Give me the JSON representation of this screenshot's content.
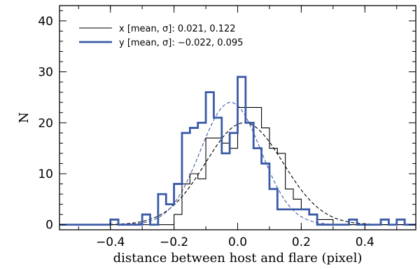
{
  "chart_data": {
    "type": "histogram",
    "xlabel": "distance between host and flare (pixel)",
    "ylabel": "N",
    "xlim": [
      -0.56,
      0.56
    ],
    "ylim": [
      -1,
      43
    ],
    "x_ticks": [
      -0.4,
      -0.2,
      0.0,
      0.2,
      0.4
    ],
    "x_tick_labels": [
      "−0.4",
      "−0.2",
      "0.0",
      "0.2",
      "0.4"
    ],
    "y_ticks": [
      0,
      10,
      20,
      30,
      40
    ],
    "y_tick_labels": [
      "0",
      "10",
      "20",
      "30",
      "40"
    ],
    "legend_position": "top-left",
    "series": [
      {
        "name": "x [mean, σ]: 0.021, 0.122",
        "style": "thin",
        "color": "#000000",
        "mean": 0.021,
        "sigma": 0.122,
        "points": [
          [
            -0.56,
            0
          ],
          [
            -0.4,
            0
          ],
          [
            -0.375,
            0
          ],
          [
            -0.35,
            0
          ],
          [
            -0.325,
            0
          ],
          [
            -0.3,
            0
          ],
          [
            -0.275,
            0
          ],
          [
            -0.25,
            0
          ],
          [
            -0.225,
            0
          ],
          [
            -0.2,
            2
          ],
          [
            -0.175,
            8
          ],
          [
            -0.15,
            10
          ],
          [
            -0.125,
            9
          ],
          [
            -0.1,
            17
          ],
          [
            -0.075,
            17
          ],
          [
            -0.05,
            16
          ],
          [
            -0.025,
            15
          ],
          [
            0.0,
            23
          ],
          [
            0.025,
            23
          ],
          [
            0.05,
            23
          ],
          [
            0.075,
            19
          ],
          [
            0.1,
            15
          ],
          [
            0.125,
            14
          ],
          [
            0.15,
            7
          ],
          [
            0.175,
            5
          ],
          [
            0.2,
            3
          ],
          [
            0.225,
            2
          ],
          [
            0.25,
            1
          ],
          [
            0.275,
            1
          ],
          [
            0.3,
            0
          ],
          [
            0.56,
            0
          ]
        ]
      },
      {
        "name": "y [mean, σ]: −0.022, 0.095",
        "style": "thick",
        "color": "#3a5aa8",
        "mean": -0.022,
        "sigma": 0.095,
        "points": [
          [
            -0.56,
            0
          ],
          [
            -0.4,
            1
          ],
          [
            -0.375,
            0
          ],
          [
            -0.35,
            0
          ],
          [
            -0.325,
            0
          ],
          [
            -0.3,
            2
          ],
          [
            -0.275,
            0
          ],
          [
            -0.25,
            6
          ],
          [
            -0.225,
            4
          ],
          [
            -0.2,
            8
          ],
          [
            -0.175,
            18
          ],
          [
            -0.15,
            19
          ],
          [
            -0.125,
            20
          ],
          [
            -0.1,
            26
          ],
          [
            -0.075,
            21
          ],
          [
            -0.05,
            14
          ],
          [
            -0.025,
            18
          ],
          [
            0.0,
            29
          ],
          [
            0.025,
            20
          ],
          [
            0.05,
            15
          ],
          [
            0.075,
            12
          ],
          [
            0.1,
            7
          ],
          [
            0.125,
            3
          ],
          [
            0.15,
            3
          ],
          [
            0.175,
            3
          ],
          [
            0.2,
            3
          ],
          [
            0.225,
            2
          ],
          [
            0.25,
            0
          ],
          [
            0.275,
            0
          ],
          [
            0.3,
            0
          ],
          [
            0.325,
            0
          ],
          [
            0.35,
            1
          ],
          [
            0.375,
            0
          ],
          [
            0.4,
            0
          ],
          [
            0.425,
            0
          ],
          [
            0.45,
            1
          ],
          [
            0.475,
            0
          ],
          [
            0.5,
            1
          ],
          [
            0.525,
            0
          ],
          [
            0.56,
            0
          ]
        ]
      }
    ],
    "fits": [
      {
        "series": "x",
        "type": "gaussian",
        "mean": 0.021,
        "sigma": 0.122,
        "peak": 20,
        "style": "dashed",
        "color": "#000000"
      },
      {
        "series": "y",
        "type": "gaussian",
        "mean": -0.022,
        "sigma": 0.095,
        "peak": 24,
        "style": "dashed",
        "color": "#3a5aa8"
      }
    ]
  }
}
